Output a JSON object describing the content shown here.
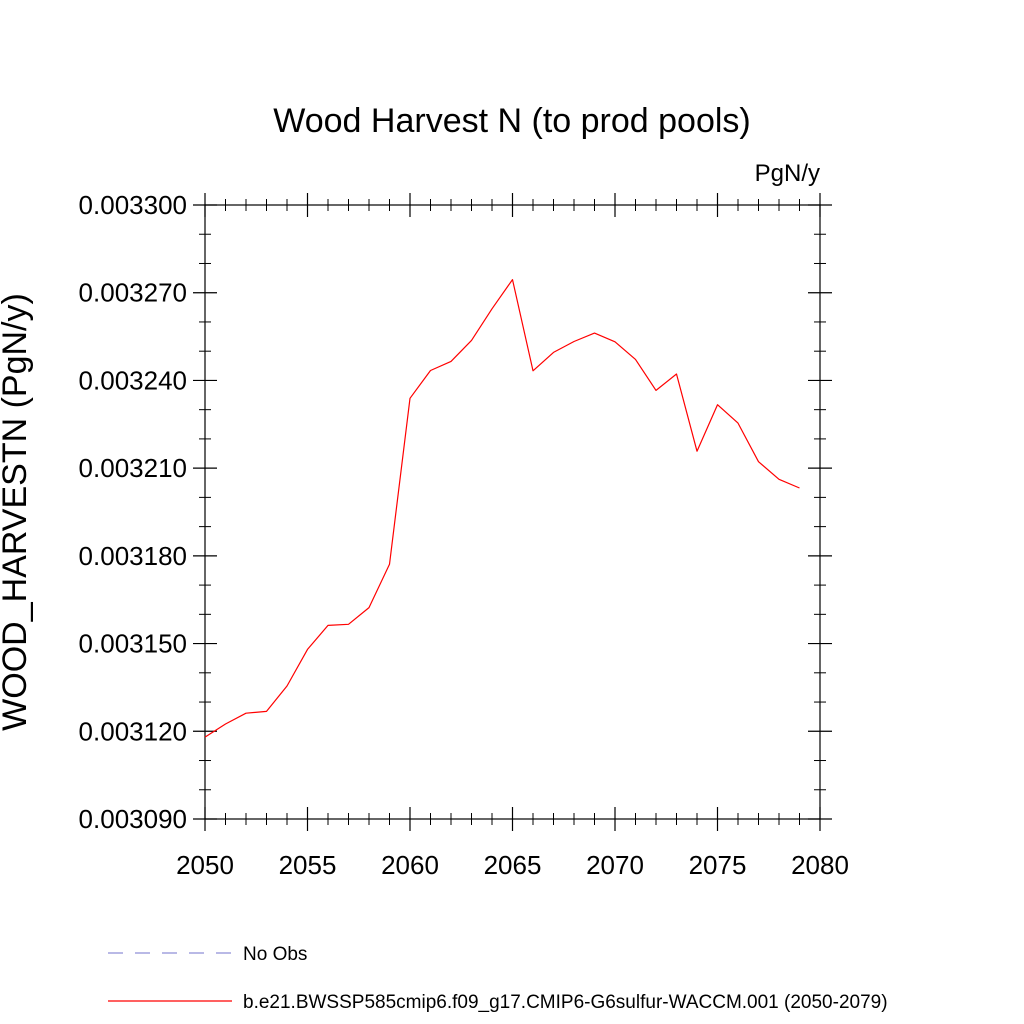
{
  "chart_data": {
    "type": "line",
    "title": "Wood Harvest N (to prod pools)",
    "units_label": "PgN/y",
    "ylabel": "WOOD_HARVESTN  (PgN/y)",
    "xlabel": "",
    "xlim": [
      2050,
      2080
    ],
    "ylim": [
      0.00309,
      0.0033
    ],
    "x_ticks": [
      2050,
      2055,
      2060,
      2065,
      2070,
      2075,
      2080
    ],
    "x_tick_labels": [
      "2050",
      "2055",
      "2060",
      "2065",
      "2070",
      "2075",
      "2080"
    ],
    "y_ticks": [
      0.00309,
      0.00312,
      0.00315,
      0.00318,
      0.00321,
      0.00324,
      0.00327,
      0.0033
    ],
    "y_tick_labels": [
      "0.003090",
      "0.003120",
      "0.003150",
      "0.003180",
      "0.003210",
      "0.003240",
      "0.003270",
      "0.003300"
    ],
    "grid": false,
    "legend_position": "bottom",
    "series": [
      {
        "name": "b.e21.BWSSP585cmip6.f09_g17.CMIP6-G6sulfur-WACCM.001 (2050-2079)",
        "color": "#ff0000",
        "dash": "solid",
        "x": [
          2050,
          2051,
          2052,
          2053,
          2054,
          2055,
          2056,
          2057,
          2058,
          2059,
          2060,
          2061,
          2062,
          2063,
          2064,
          2065,
          2066,
          2067,
          2068,
          2069,
          2070,
          2071,
          2072,
          2073,
          2074,
          2075,
          2076,
          2077,
          2078,
          2079
        ],
        "y": [
          0.003118,
          0.0031225,
          0.0031262,
          0.0031268,
          0.0031355,
          0.003148,
          0.0031562,
          0.0031566,
          0.0031623,
          0.0031771,
          0.0032339,
          0.0032434,
          0.0032465,
          0.0032537,
          0.0032645,
          0.0032745,
          0.0032433,
          0.0032496,
          0.0032533,
          0.0032562,
          0.0032532,
          0.0032472,
          0.0032366,
          0.0032422,
          0.0032158,
          0.0032317,
          0.0032254,
          0.0032122,
          0.0032062,
          0.0032032
        ]
      }
    ],
    "legend": [
      {
        "label": "No Obs",
        "color": "#8f8fd8",
        "dash": "dashed"
      },
      {
        "label": "b.e21.BWSSP585cmip6.f09_g17.CMIP6-G6sulfur-WACCM.001 (2050-2079)",
        "color": "#ff0000",
        "dash": "solid"
      }
    ]
  }
}
